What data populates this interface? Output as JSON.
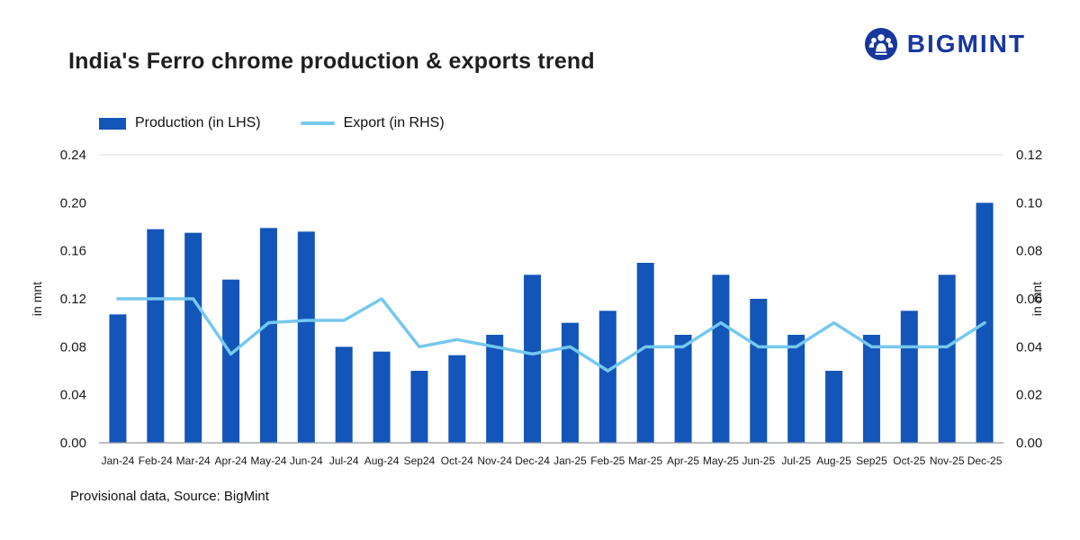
{
  "brand": {
    "name": "BIGMINT",
    "color": "#17379e"
  },
  "footer": {
    "note": "Provisional data, Source: BigMint"
  },
  "chart_data": {
    "type": "bar+line",
    "title": "India's Ferro chrome production & exports trend",
    "categories": [
      "Jan-24",
      "Feb-24",
      "Mar-24",
      "Apr-24",
      "May-24",
      "Jun-24",
      "Jul-24",
      "Aug-24",
      "Sep24",
      "Oct-24",
      "Nov-24",
      "Dec-24",
      "Jan-25",
      "Feb-25",
      "Mar-25",
      "Apr-25",
      "May-25",
      "Jun-25",
      "Jul-25",
      "Aug-25",
      "Sep25",
      "Oct-25",
      "Nov-25",
      "Dec-25"
    ],
    "series": [
      {
        "name": "Production (in LHS)",
        "type": "bar",
        "axis": "left",
        "color": "#1355b8",
        "values": [
          0.107,
          0.178,
          0.175,
          0.136,
          0.179,
          0.176,
          0.08,
          0.076,
          0.06,
          0.073,
          0.09,
          0.14,
          0.1,
          0.11,
          0.15,
          0.09,
          0.14,
          0.12,
          0.09,
          0.06,
          0.09,
          0.11,
          0.14,
          0.2
        ]
      },
      {
        "name": "Export (in RHS)",
        "type": "line",
        "axis": "right",
        "color": "#75c8ef",
        "values": [
          0.06,
          0.06,
          0.06,
          0.037,
          0.05,
          0.051,
          0.051,
          0.06,
          0.04,
          0.043,
          0.04,
          0.037,
          0.04,
          0.03,
          0.04,
          0.04,
          0.05,
          0.04,
          0.04,
          0.05,
          0.04,
          0.04,
          0.04,
          0.05
        ]
      }
    ],
    "left_axis": {
      "label": "in mnt",
      "min": 0,
      "max": 0.24,
      "tick_step": 0.04
    },
    "right_axis": {
      "label": "in mnt",
      "min": 0,
      "max": 0.12,
      "tick_step": 0.02
    },
    "grid": false,
    "legend_position": "top-left"
  }
}
